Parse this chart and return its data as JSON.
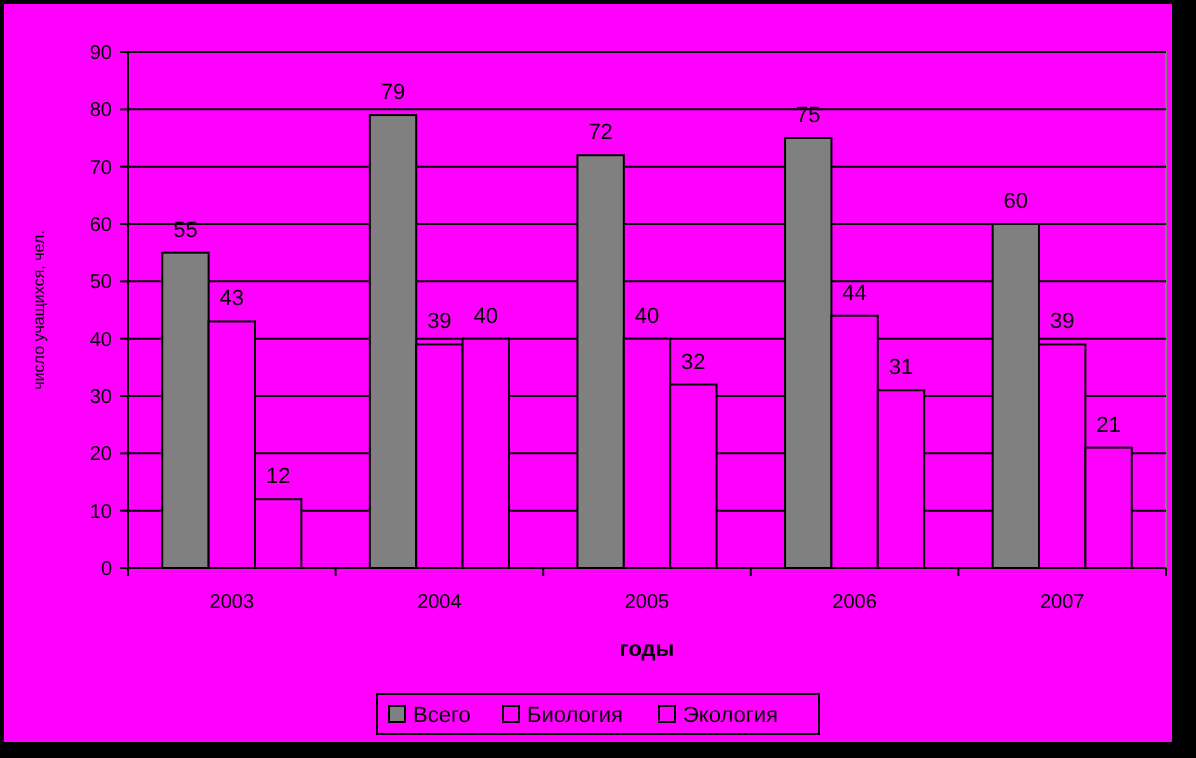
{
  "chart_data": {
    "type": "bar",
    "xlabel": "годы",
    "ylabel": "число учащихся, чел.",
    "categories": [
      "2003",
      "2004",
      "2005",
      "2006",
      "2007"
    ],
    "series": [
      {
        "name": "Всего",
        "color": "#808080",
        "values": [
          55,
          79,
          72,
          75,
          60
        ]
      },
      {
        "name": "Биология",
        "color": "#ff00ff",
        "values": [
          43,
          39,
          40,
          44,
          39
        ]
      },
      {
        "name": "Экология",
        "color": "#ff00ff",
        "values": [
          12,
          40,
          32,
          31,
          21
        ]
      }
    ],
    "ylim": [
      0,
      90
    ],
    "yticks": [
      0,
      10,
      20,
      30,
      40,
      50,
      60,
      70,
      80,
      90
    ],
    "grid": "y",
    "legend": "bottom",
    "data_labels": true
  }
}
